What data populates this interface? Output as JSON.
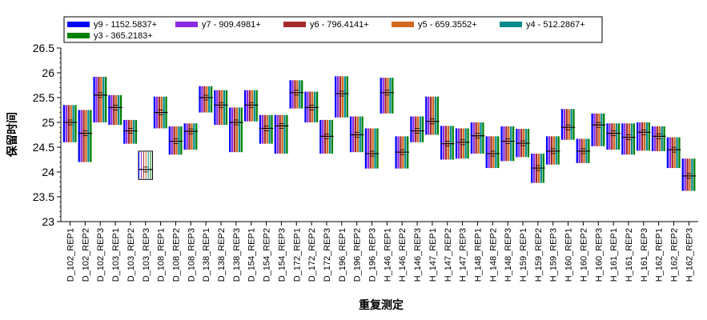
{
  "chart_data": {
    "type": "box",
    "xlabel": "重复测定",
    "ylabel": "保留时间",
    "ylim": [
      23,
      26.5
    ],
    "yticks": [
      "23",
      "23.5",
      "24",
      "24.5",
      "25",
      "25.5",
      "26",
      "26.5"
    ],
    "legend_position": "top",
    "categories": [
      "D_102_REP1",
      "D_102_REP2",
      "D_102_REP3",
      "D_103_REP1",
      "D_103_REP2",
      "D_103_REP3",
      "D_108_REP1",
      "D_108_REP2",
      "D_108_REP3",
      "D_138_REP1",
      "D_138_REP2",
      "D_138_REP3",
      "D_154_REP1",
      "D_154_REP2",
      "D_154_REP3",
      "D_172_REP1",
      "D_172_REP2",
      "D_172_REP3",
      "D_196_REP1",
      "D_196_REP2",
      "D_196_REP3",
      "H_146_REP1",
      "H_146_REP2",
      "H_146_REP3",
      "H_147_REP1",
      "H_147_REP2",
      "H_147_REP3",
      "H_148_REP1",
      "H_148_REP2",
      "H_148_REP3",
      "H_159_REP1",
      "H_159_REP2",
      "H_159_REP3",
      "H_160_REP1",
      "H_160_REP2",
      "H_160_REP3",
      "H_161_REP1",
      "H_161_REP2",
      "H_161_REP3",
      "H_162_REP1",
      "H_162_REP2",
      "H_162_REP3"
    ],
    "series": [
      {
        "name": "y9 - 1152.5837+",
        "color": "#0000ff"
      },
      {
        "name": "y7 - 909.4981+",
        "color": "#8a2be2"
      },
      {
        "name": "y6 - 796.4141+",
        "color": "#a52a2a"
      },
      {
        "name": "y5 - 659.3552+",
        "color": "#d2691e"
      },
      {
        "name": "y4 - 512.2867+",
        "color": "#008b8b"
      },
      {
        "name": "y3 - 365.2183+",
        "color": "#008000"
      }
    ],
    "boxes": [
      {
        "low": 24.6,
        "high": 25.35,
        "median": 25.0
      },
      {
        "low": 24.2,
        "high": 25.25,
        "median": 24.78
      },
      {
        "low": 25.0,
        "high": 25.92,
        "median": 25.55
      },
      {
        "low": 24.95,
        "high": 25.55,
        "median": 25.3
      },
      {
        "low": 24.57,
        "high": 25.05,
        "median": 24.83
      },
      {
        "low": 23.85,
        "high": 24.42,
        "median": 24.05
      },
      {
        "low": 24.88,
        "high": 25.52,
        "median": 25.2
      },
      {
        "low": 24.35,
        "high": 24.92,
        "median": 24.62
      },
      {
        "low": 24.45,
        "high": 24.98,
        "median": 24.82
      },
      {
        "low": 25.2,
        "high": 25.73,
        "median": 25.5
      },
      {
        "low": 24.95,
        "high": 25.65,
        "median": 25.35
      },
      {
        "low": 24.4,
        "high": 25.3,
        "median": 25.0
      },
      {
        "low": 25.02,
        "high": 25.65,
        "median": 25.35
      },
      {
        "low": 24.57,
        "high": 25.15,
        "median": 24.88
      },
      {
        "low": 24.37,
        "high": 25.15,
        "median": 24.93
      },
      {
        "low": 25.28,
        "high": 25.85,
        "median": 25.6
      },
      {
        "low": 25.0,
        "high": 25.62,
        "median": 25.3
      },
      {
        "low": 24.37,
        "high": 25.05,
        "median": 24.72
      },
      {
        "low": 25.1,
        "high": 25.93,
        "median": 25.58
      },
      {
        "low": 24.4,
        "high": 25.12,
        "median": 24.75
      },
      {
        "low": 24.07,
        "high": 24.88,
        "median": 24.37
      },
      {
        "low": 25.18,
        "high": 25.9,
        "median": 25.6
      },
      {
        "low": 24.07,
        "high": 24.72,
        "median": 24.4
      },
      {
        "low": 24.6,
        "high": 25.12,
        "median": 24.83
      },
      {
        "low": 24.75,
        "high": 25.52,
        "median": 25.02
      },
      {
        "low": 24.25,
        "high": 24.93,
        "median": 24.57
      },
      {
        "low": 24.27,
        "high": 24.88,
        "median": 24.6
      },
      {
        "low": 24.37,
        "high": 25.0,
        "median": 24.73
      },
      {
        "low": 24.08,
        "high": 24.72,
        "median": 24.37
      },
      {
        "low": 24.22,
        "high": 24.92,
        "median": 24.62
      },
      {
        "low": 24.3,
        "high": 24.87,
        "median": 24.58
      },
      {
        "low": 23.78,
        "high": 24.37,
        "median": 24.08
      },
      {
        "low": 24.15,
        "high": 24.72,
        "median": 24.42
      },
      {
        "low": 24.65,
        "high": 25.27,
        "median": 24.9
      },
      {
        "low": 24.18,
        "high": 24.67,
        "median": 24.42
      },
      {
        "low": 24.52,
        "high": 25.18,
        "median": 24.95
      },
      {
        "low": 24.45,
        "high": 24.98,
        "median": 24.78
      },
      {
        "low": 24.35,
        "high": 24.98,
        "median": 24.7
      },
      {
        "low": 24.43,
        "high": 25.0,
        "median": 24.8
      },
      {
        "low": 24.42,
        "high": 24.92,
        "median": 24.72
      },
      {
        "low": 24.08,
        "high": 24.7,
        "median": 24.45
      },
      {
        "low": 23.62,
        "high": 24.27,
        "median": 23.92
      }
    ]
  }
}
